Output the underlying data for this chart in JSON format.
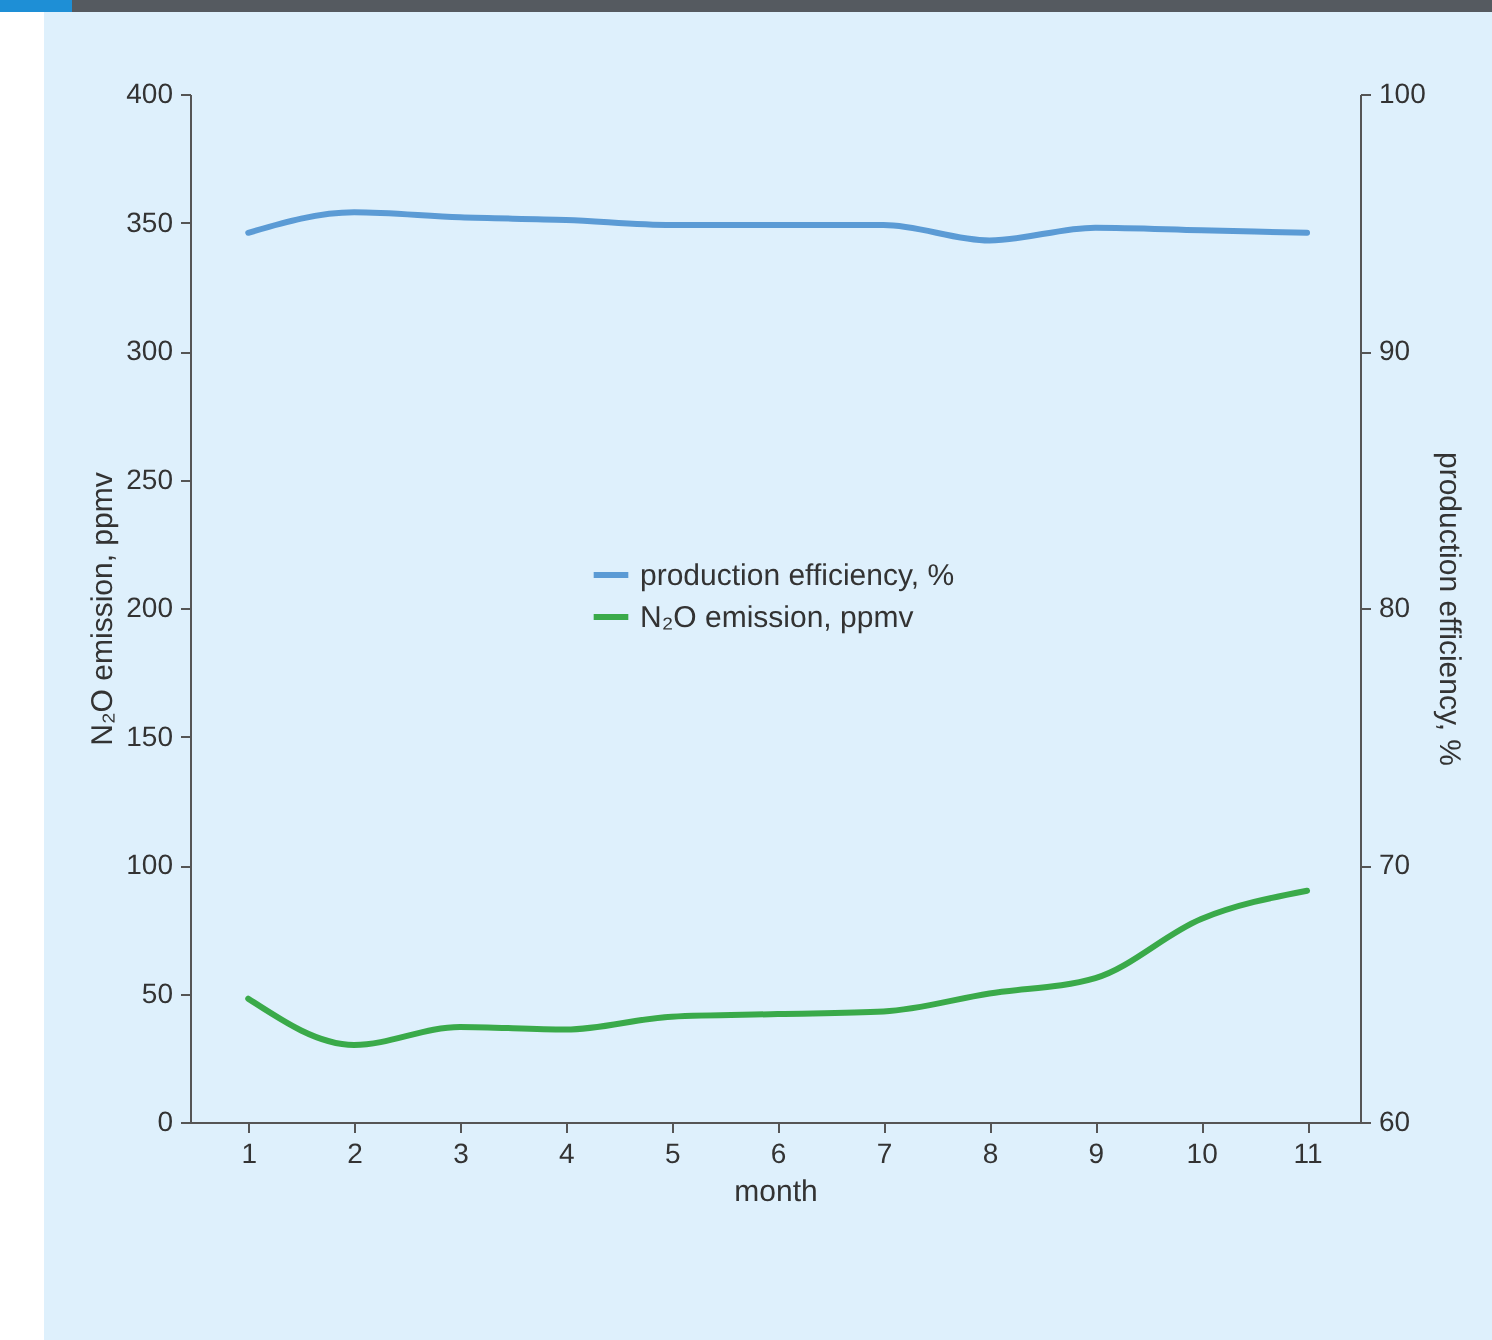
{
  "chart_data": {
    "type": "line",
    "xlabel": "month",
    "ylabel": "N₂O emission, ppmv",
    "y2label": "production efficiency, %",
    "x": [
      1,
      2,
      3,
      4,
      5,
      6,
      7,
      8,
      9,
      10,
      11
    ],
    "series": [
      {
        "name": "production efficiency, %",
        "color": "#5b9bd5",
        "axis": "y2",
        "values": [
          94.6,
          95.4,
          95.2,
          95.1,
          94.9,
          94.9,
          94.9,
          94.3,
          94.8,
          94.7,
          94.6
        ]
      },
      {
        "name": "N₂O emission, ppmv",
        "color": "#3aaa4a",
        "values": [
          48,
          30,
          37,
          36,
          41,
          42,
          43,
          50,
          56,
          79,
          90
        ]
      }
    ],
    "xlim": [
      0.45,
      11.5
    ],
    "xticks": [
      1,
      2,
      3,
      4,
      5,
      6,
      7,
      8,
      9,
      10,
      11
    ],
    "ylim": [
      0,
      400
    ],
    "yticks": [
      0,
      50,
      100,
      150,
      200,
      250,
      300,
      350,
      400
    ],
    "y2lim": [
      60,
      100
    ],
    "y2ticks": [
      60,
      70,
      80,
      90,
      100
    ],
    "grid": false,
    "legend": "center",
    "marker": "none",
    "line_style": "solid"
  }
}
